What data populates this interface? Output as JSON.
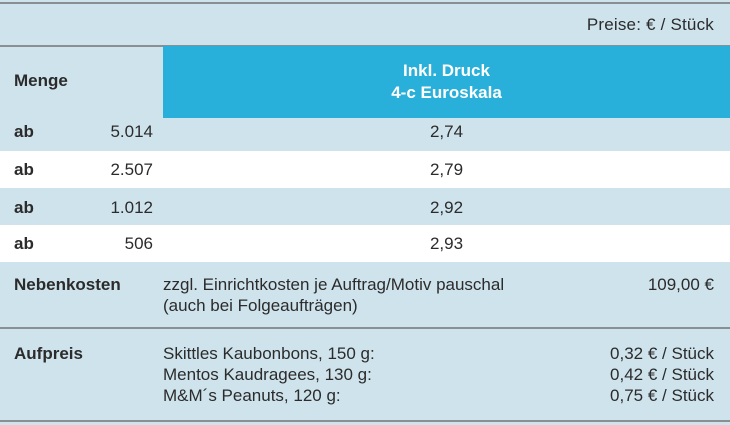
{
  "unit_note": "Preise: € / Stück",
  "header": {
    "quantity_label": "Menge",
    "print_line1": "Inkl. Druck",
    "print_line2": "4-c Euroskala"
  },
  "rows": [
    {
      "prefix": "ab",
      "quantity": "5.014",
      "price": "2,74"
    },
    {
      "prefix": "ab",
      "quantity": "2.507",
      "price": "2,79"
    },
    {
      "prefix": "ab",
      "quantity": "1.012",
      "price": "2,92"
    },
    {
      "prefix": "ab",
      "quantity": "506",
      "price": "2,93"
    }
  ],
  "nebenkosten": {
    "label": "Nebenkosten",
    "line1": "zzgl. Einrichtkosten je Auftrag/Motiv pauschal",
    "line2": "(auch bei Folgeaufträgen)",
    "amount": "109,00 €"
  },
  "aufpreis": {
    "label": "Aufpreis",
    "items": [
      {
        "name": "Skittles Kaubonbons, 150 g:",
        "price": "0,32 € / Stück"
      },
      {
        "name": "Mentos Kaudragees, 130 g:",
        "price": "0,42 € / Stück"
      },
      {
        "name": "M&M´s Peanuts, 120 g:",
        "price": "0,75 € / Stück"
      }
    ]
  },
  "colors": {
    "background": "#cfe3ec",
    "header_accent": "#29b0da",
    "row_white": "#ffffff"
  }
}
